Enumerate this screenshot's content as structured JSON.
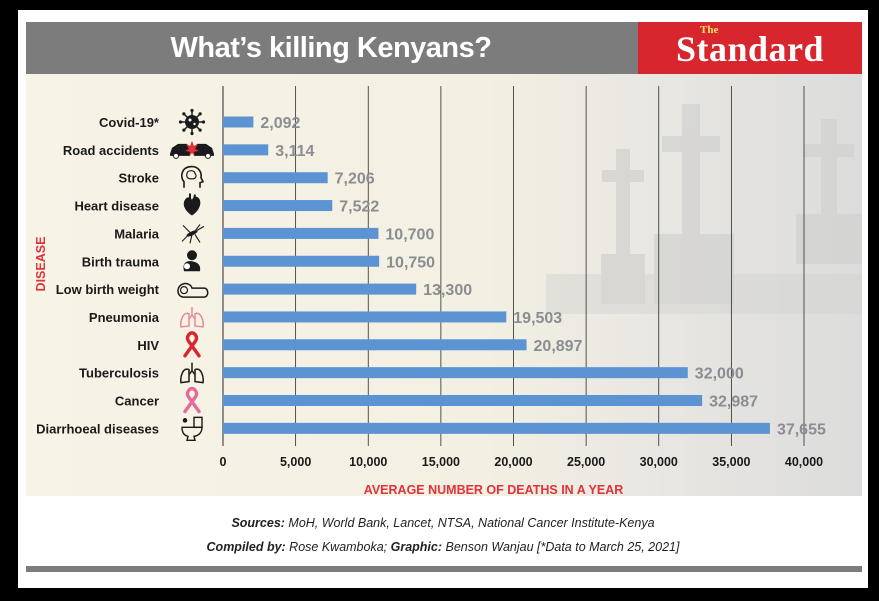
{
  "header": {
    "title": "What’s killing Kenyans?",
    "brand_small": "The",
    "brand": "Standard"
  },
  "footer": {
    "sources_label": "Sources:",
    "sources_text": " MoH, World Bank, Lancet, NTSA, National Cancer Institute-Kenya",
    "compiled_label": "Compiled by:",
    "compiled_text": " Rose Kwamboka; ",
    "graphic_label": "Graphic:",
    "graphic_text": " Benson Wanjau [*Data to March 25, 2021]"
  },
  "colors": {
    "bar": "#5b93d3",
    "title_bar": "#7c7c7c",
    "brand_red": "#d7262d",
    "axis_title": "#e0323a",
    "value_label": "#8a8d91"
  },
  "chart_data": {
    "type": "bar",
    "orientation": "horizontal",
    "title": "What’s killing Kenyans?",
    "xlabel": "AVERAGE NUMBER OF DEATHS IN A YEAR",
    "ylabel": "DISEASE",
    "xlim": [
      0,
      40000
    ],
    "x_ticks": [
      0,
      5000,
      10000,
      15000,
      20000,
      25000,
      30000,
      35000,
      40000
    ],
    "x_tick_labels": [
      "0",
      "5,000",
      "10,000",
      "15,000",
      "20,000",
      "25,000",
      "30,000",
      "35,000",
      "40,000"
    ],
    "grid": true,
    "categories": [
      "Covid-19*",
      "Road accidents",
      "Stroke",
      "Heart disease",
      "Malaria",
      "Birth trauma",
      "Low birth weight",
      "Pneumonia",
      "HIV",
      "Tuberculosis",
      "Cancer",
      "Diarrhoeal diseases"
    ],
    "values": [
      2092,
      3114,
      7206,
      7522,
      10700,
      10750,
      13300,
      19503,
      20897,
      32000,
      32987,
      37655
    ],
    "value_labels": [
      "2,092",
      "3,114",
      "7,206",
      "7,522",
      "10,700",
      "10,750",
      "13,300",
      "19,503",
      "20,897",
      "32,000",
      "32,987",
      "37,655"
    ],
    "icons": [
      "virus-icon",
      "car-crash-icon",
      "brain-head-icon",
      "heart-icon",
      "mosquito-icon",
      "birth-trauma-icon",
      "baby-icon",
      "lungs-pink-icon",
      "red-ribbon-icon",
      "lungs-icon",
      "pink-ribbon-icon",
      "toilet-icon"
    ]
  }
}
